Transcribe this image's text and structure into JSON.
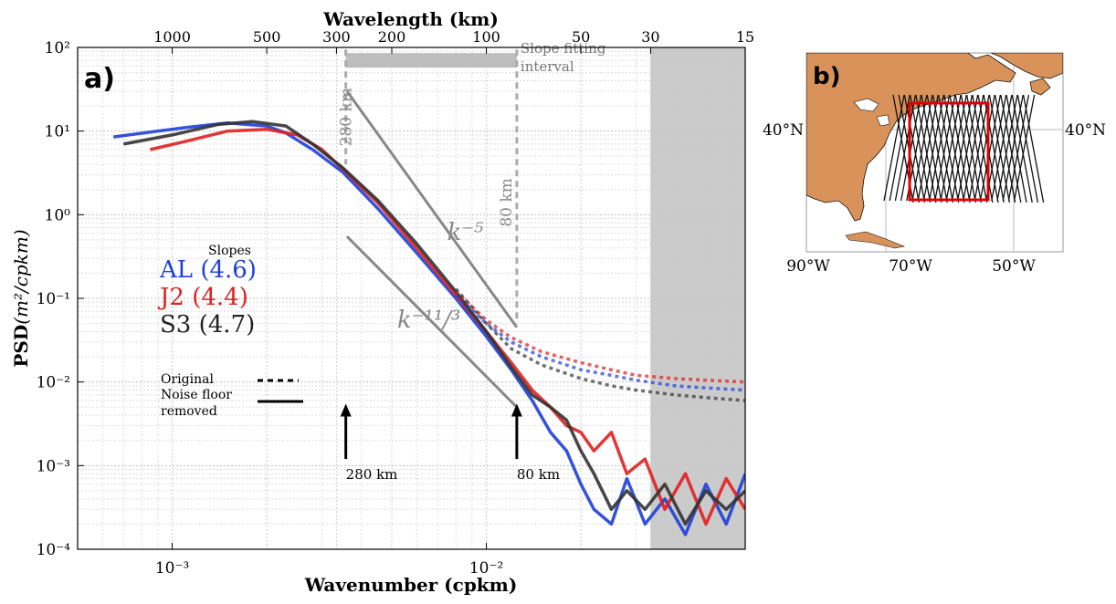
{
  "figure": {
    "panel_a_label": "a)",
    "panel_b_label": "b)"
  },
  "chart_data": [
    {
      "type": "line",
      "panel": "a)",
      "title": "",
      "xlabel": "Wavenumber (cpkm)",
      "ylabel_bold": "PSD",
      "ylabel_units": "(m²/cpkm)",
      "top_axis_label": "Wavelength (km)",
      "x_scale": "log",
      "y_scale": "log",
      "xlim": [
        0.0005,
        0.06667
      ],
      "ylim": [
        0.0001,
        100
      ],
      "x_ticks": [
        {
          "value": 0.001,
          "label": "10⁻³"
        },
        {
          "value": 0.01,
          "label": "10⁻²"
        }
      ],
      "y_ticks": [
        {
          "value": 0.0001,
          "label": "10⁻⁴"
        },
        {
          "value": 0.001,
          "label": "10⁻³"
        },
        {
          "value": 0.01,
          "label": "10⁻²"
        },
        {
          "value": 0.1,
          "label": "10⁻¹"
        },
        {
          "value": 1,
          "label": "10⁰"
        },
        {
          "value": 10,
          "label": "10¹"
        },
        {
          "value": 100,
          "label": "10²"
        }
      ],
      "top_ticks": [
        {
          "km": 1000,
          "label": "1000"
        },
        {
          "km": 500,
          "label": "500"
        },
        {
          "km": 300,
          "label": "300"
        },
        {
          "km": 200,
          "label": "200"
        },
        {
          "km": 100,
          "label": "100"
        },
        {
          "km": 50,
          "label": "50"
        },
        {
          "km": 30,
          "label": "30"
        },
        {
          "km": 15,
          "label": "15"
        }
      ],
      "grid": true,
      "shaded_region_x": [
        0.0333,
        0.06667
      ],
      "colors": {
        "AL": "#1f3fd8",
        "J2": "#e02020",
        "S3": "#333333",
        "reference": "#888888",
        "shade": "#c8c8c8"
      },
      "series": [
        {
          "name": "AL",
          "style": "solid",
          "x": [
            0.00065,
            0.0009,
            0.0011,
            0.0015,
            0.002,
            0.0023,
            0.0028,
            0.0035,
            0.0045,
            0.006,
            0.008,
            0.01,
            0.012,
            0.014,
            0.016,
            0.018,
            0.02,
            0.022,
            0.025,
            0.028,
            0.032,
            0.037,
            0.043,
            0.05,
            0.058,
            0.0667
          ],
          "y": [
            8.5,
            10,
            11,
            12.5,
            11.5,
            9.5,
            6,
            3.2,
            1.2,
            0.35,
            0.1,
            0.035,
            0.014,
            0.006,
            0.0025,
            0.0015,
            0.0006,
            0.0003,
            0.0002,
            0.0007,
            0.0002,
            0.0004,
            0.00015,
            0.0006,
            0.0002,
            0.0008
          ]
        },
        {
          "name": "J2",
          "style": "solid",
          "x": [
            0.00085,
            0.0011,
            0.0015,
            0.002,
            0.0025,
            0.003,
            0.0035,
            0.0045,
            0.006,
            0.008,
            0.01,
            0.012,
            0.014,
            0.016,
            0.018,
            0.02,
            0.022,
            0.025,
            0.028,
            0.032,
            0.037,
            0.043,
            0.05,
            0.058,
            0.0667
          ],
          "y": [
            6,
            7.5,
            10,
            10.5,
            9,
            6,
            3.5,
            1.4,
            0.4,
            0.11,
            0.04,
            0.017,
            0.008,
            0.005,
            0.003,
            0.0025,
            0.0015,
            0.0025,
            0.0008,
            0.0012,
            0.0003,
            0.0008,
            0.0002,
            0.0007,
            0.0003
          ]
        },
        {
          "name": "S3",
          "style": "solid",
          "x": [
            0.0007,
            0.001,
            0.0014,
            0.0018,
            0.0023,
            0.0028,
            0.0035,
            0.0045,
            0.006,
            0.008,
            0.01,
            0.012,
            0.014,
            0.016,
            0.018,
            0.02,
            0.022,
            0.025,
            0.028,
            0.032,
            0.037,
            0.043,
            0.05,
            0.058,
            0.0667
          ],
          "y": [
            7,
            9,
            12,
            13,
            11.5,
            7,
            3.6,
            1.5,
            0.45,
            0.12,
            0.04,
            0.015,
            0.007,
            0.005,
            0.0035,
            0.0015,
            0.0008,
            0.0003,
            0.0005,
            0.0003,
            0.0006,
            0.0002,
            0.0005,
            0.0003,
            0.0005
          ]
        },
        {
          "name": "AL",
          "style": "dotted",
          "x": [
            0.008,
            0.01,
            0.012,
            0.015,
            0.02,
            0.025,
            0.03,
            0.04,
            0.05,
            0.0667
          ],
          "y": [
            0.11,
            0.05,
            0.03,
            0.02,
            0.014,
            0.012,
            0.0105,
            0.009,
            0.0085,
            0.008
          ]
        },
        {
          "name": "J2",
          "style": "dotted",
          "x": [
            0.008,
            0.01,
            0.012,
            0.015,
            0.02,
            0.025,
            0.03,
            0.04,
            0.05,
            0.0667
          ],
          "y": [
            0.12,
            0.055,
            0.034,
            0.023,
            0.017,
            0.014,
            0.012,
            0.011,
            0.0105,
            0.01
          ]
        },
        {
          "name": "S3",
          "style": "dotted",
          "x": [
            0.008,
            0.01,
            0.012,
            0.015,
            0.02,
            0.025,
            0.03,
            0.04,
            0.05,
            0.0667
          ],
          "y": [
            0.13,
            0.05,
            0.025,
            0.016,
            0.011,
            0.009,
            0.008,
            0.007,
            0.0065,
            0.006
          ]
        }
      ],
      "reference_lines": [
        {
          "label": "k⁻⁵",
          "x": [
            0.0036,
            0.0125
          ],
          "y": [
            30,
            0.045
          ],
          "label_at": [
            0.0075,
            0.5
          ]
        },
        {
          "label": "k⁻¹¹/³",
          "x": [
            0.0036,
            0.0125
          ],
          "y": [
            0.55,
            0.005
          ],
          "label_at": [
            0.0052,
            0.045
          ]
        }
      ],
      "fit_interval": {
        "x": [
          0.00357,
          0.0125
        ],
        "y": 70,
        "label_line1": "Slope fitting",
        "label_line2": "interval",
        "left_label": "280 km",
        "right_label": "80 km"
      },
      "arrows": [
        {
          "x": 0.00357,
          "label": "280 km",
          "y_tip": 0.0055,
          "y_tail": 0.0012
        },
        {
          "x": 0.0125,
          "label": "80 km",
          "y_tip": 0.0055,
          "y_tail": 0.0012
        }
      ],
      "slopes_legend": {
        "heading": "Slopes",
        "entries": [
          {
            "name": "AL",
            "value": "(4.6)"
          },
          {
            "name": "J2",
            "value": "(4.4)"
          },
          {
            "name": "S3",
            "value": "(4.7)"
          }
        ]
      },
      "style_legend": [
        {
          "label": "Original",
          "style": "dotted"
        },
        {
          "label": "Noise floor removed",
          "style": "solid"
        }
      ]
    },
    {
      "type": "map",
      "panel": "b)",
      "lon_ticks": [
        "90°W",
        "70°W",
        "50°W"
      ],
      "lat_ticks": [
        "40°N"
      ],
      "land_color": "#d9935a",
      "box_color": "#e00000"
    }
  ]
}
